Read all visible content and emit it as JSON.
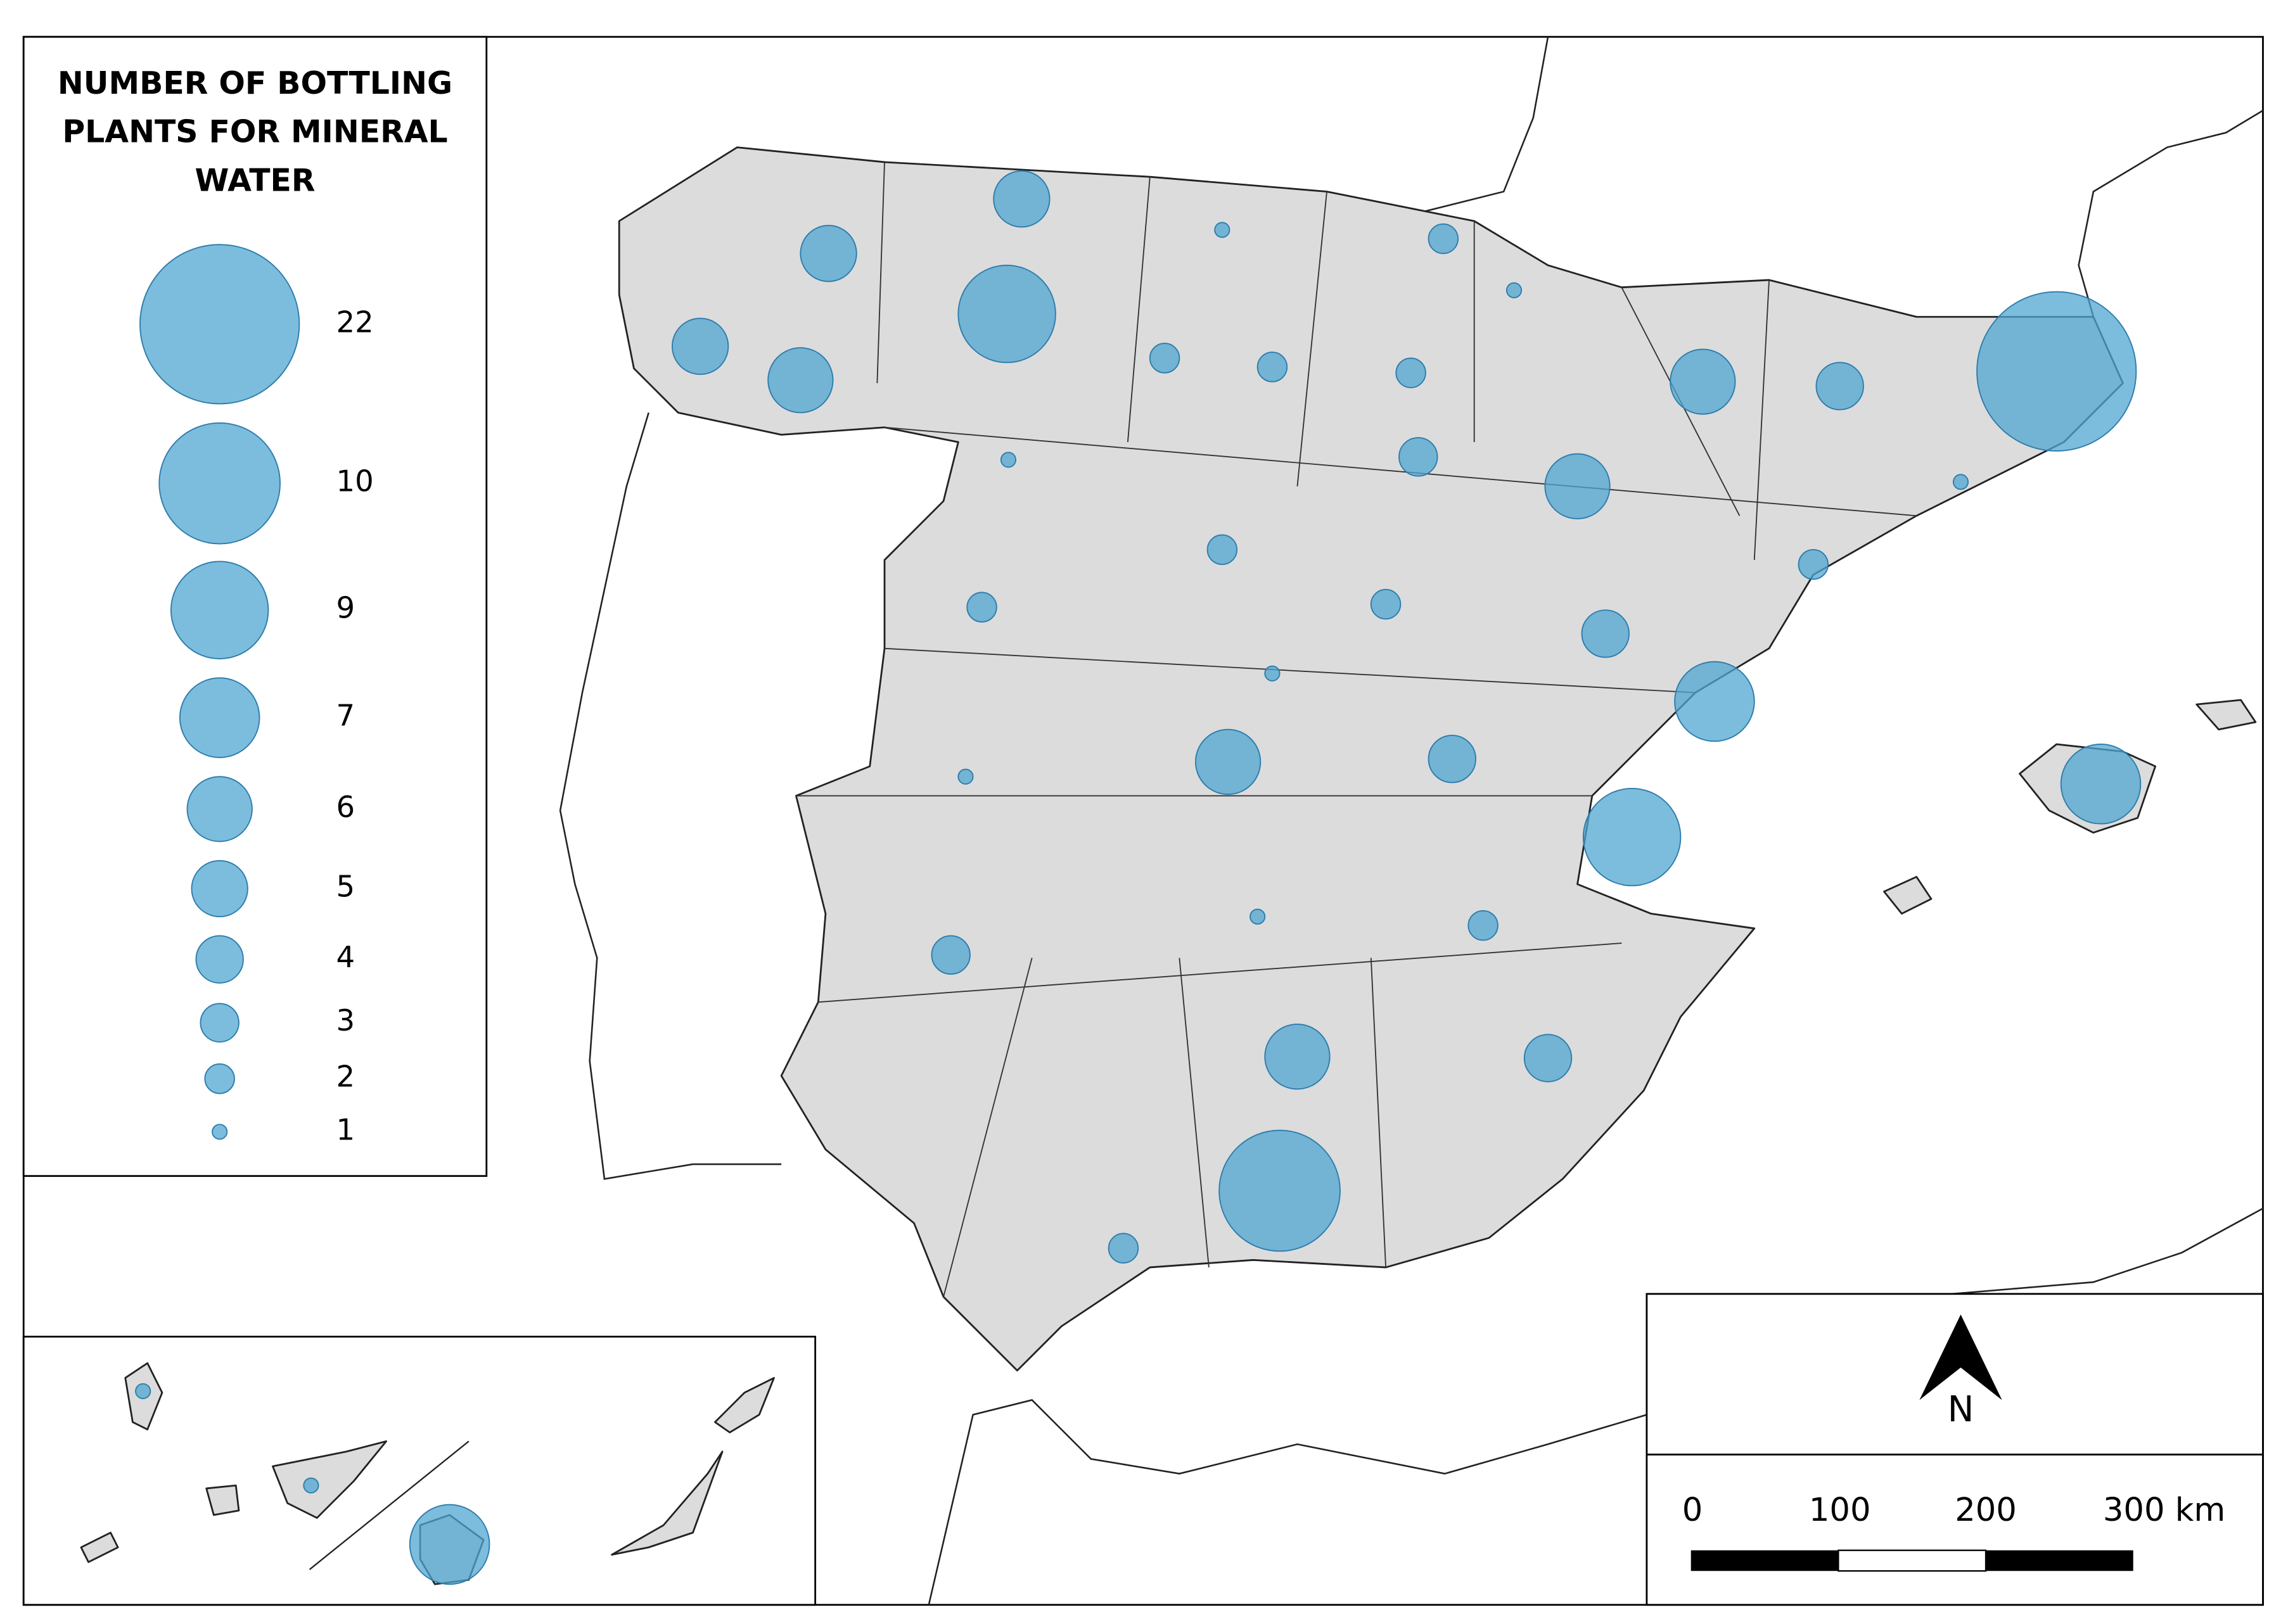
{
  "legend": {
    "title_lines": [
      "NUMBER OF BOTTLING",
      "PLANTS FOR MINERAL",
      "WATER"
    ],
    "items": [
      22,
      10,
      9,
      7,
      6,
      5,
      4,
      3,
      2,
      1
    ]
  },
  "bubbles": [
    5,
    5,
    1,
    2,
    9,
    1,
    5,
    6,
    2,
    2,
    2,
    6,
    4,
    22,
    1,
    3,
    6,
    1,
    2,
    2,
    2,
    2,
    4,
    1,
    7,
    6,
    4,
    1,
    7,
    9,
    1,
    2,
    3,
    6,
    4,
    10,
    2,
    1,
    1,
    7
  ],
  "north": "N",
  "scale_bar": {
    "labels": [
      "0",
      "100",
      "200",
      "300 km"
    ]
  }
}
